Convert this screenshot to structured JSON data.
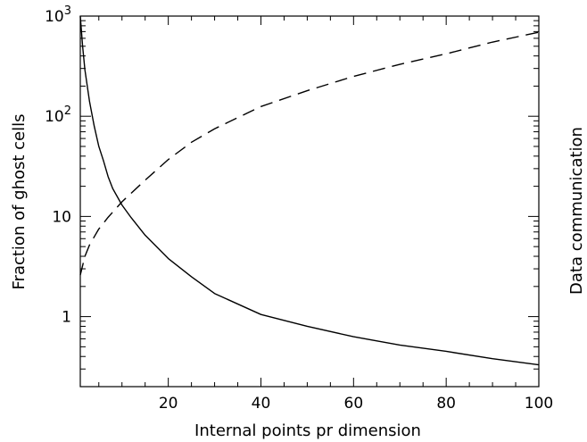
{
  "chart_data": {
    "type": "line",
    "xlabel": "Internal points pr dimension",
    "ylabel": "Fraction of ghost cells",
    "ylabel_right": "Data communication",
    "xlim": [
      1,
      100
    ],
    "ylim": [
      0.2,
      1000
    ],
    "yscale": "log",
    "grid": false,
    "x_ticks": [
      {
        "value": 20,
        "label": "20"
      },
      {
        "value": 40,
        "label": "40"
      },
      {
        "value": 60,
        "label": "60"
      },
      {
        "value": 80,
        "label": "80"
      },
      {
        "value": 100,
        "label": "100"
      }
    ],
    "y_ticks": [
      {
        "value": 1,
        "label": "1"
      },
      {
        "value": 10,
        "label": "10"
      },
      {
        "value": 100,
        "label": "10",
        "exp": "2"
      },
      {
        "value": 1000,
        "label": "10",
        "exp": "3"
      }
    ],
    "series": [
      {
        "style": "solid",
        "color": "#000000",
        "x": [
          1,
          1.5,
          2,
          3,
          4,
          5,
          6,
          7,
          8,
          10,
          12,
          15,
          20,
          25,
          30,
          40,
          50,
          60,
          70,
          80,
          90,
          100
        ],
        "y": [
          1000,
          500,
          290,
          140,
          80,
          50,
          36,
          25,
          19,
          13,
          9.7,
          6.5,
          3.8,
          2.5,
          1.7,
          1.05,
          0.8,
          0.63,
          0.52,
          0.45,
          0.38,
          0.33
        ]
      },
      {
        "style": "dashed",
        "color": "#000000",
        "x": [
          1,
          2,
          3,
          5,
          7,
          10,
          15,
          20,
          25,
          30,
          40,
          50,
          60,
          70,
          80,
          90,
          100
        ],
        "y": [
          2.6,
          4,
          5.2,
          7.5,
          9.8,
          14,
          23,
          37,
          55,
          75,
          125,
          180,
          250,
          330,
          420,
          550,
          690
        ]
      }
    ]
  }
}
